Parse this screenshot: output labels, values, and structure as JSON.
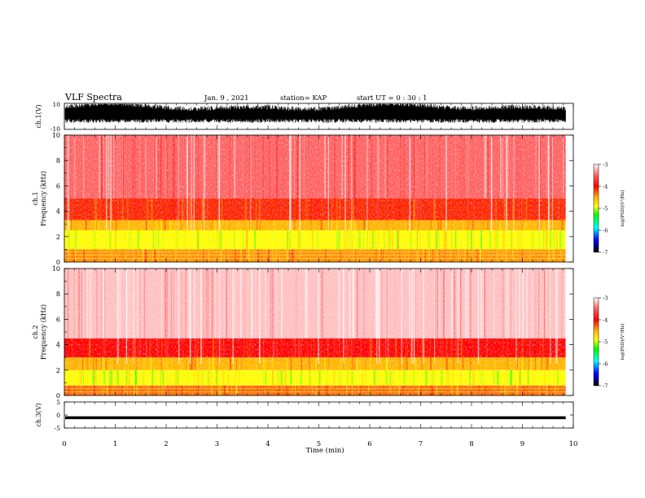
{
  "header": {
    "title": "VLF Spectra",
    "date": "Jan. 9 , 2021",
    "station": "station= KAP",
    "start_ut": "start UT = 0 : 30 : 1"
  },
  "colors": {
    "waveform": "#000000",
    "colormap": [
      "#ffffff",
      "#ff0000",
      "#ffff00",
      "#00ff00",
      "#00ffff",
      "#0000ff",
      "#000000"
    ]
  },
  "chart_data": [
    {
      "type": "line",
      "panel": "ch1-waveform",
      "ylabel": "ch.1(V)",
      "ylim": [
        -10,
        10
      ],
      "yticks": [
        "10",
        "-10"
      ],
      "xlim": [
        0,
        10
      ],
      "description_of_trace": "noisy broadband amplitude mostly within about -5 to 8 V"
    },
    {
      "type": "heatmap",
      "panel": "ch1-spectrogram",
      "ylabel_channel": "ch.1",
      "ylabel": "Frequency (kHz)",
      "ylim": [
        0,
        10
      ],
      "yticks": [
        "0",
        "2",
        "4",
        "6",
        "8",
        "10"
      ],
      "xlim": [
        0,
        10
      ],
      "data_end_min": 9.85,
      "colorbar": {
        "label": "log(PSD)(V²/Hz)",
        "range": [
          -7,
          -3
        ],
        "ticks": [
          "-3",
          "-4",
          "-5",
          "-6",
          "-7"
        ]
      },
      "bands_kHz": [
        {
          "f_from": 0,
          "f_to": 1,
          "level": -4.4
        },
        {
          "f_from": 1,
          "f_to": 2.5,
          "level": -4.9
        },
        {
          "f_from": 2.5,
          "f_to": 3.3,
          "level": -4.5
        },
        {
          "f_from": 3.3,
          "f_to": 5,
          "level": -4.1
        },
        {
          "f_from": 5,
          "f_to": 10,
          "level": -3.5
        }
      ]
    },
    {
      "type": "heatmap",
      "panel": "ch2-spectrogram",
      "ylabel_channel": "ch.2",
      "ylabel": "Frequency (kHz)",
      "ylim": [
        0,
        10
      ],
      "yticks": [
        "0",
        "2",
        "4",
        "6",
        "8",
        "10"
      ],
      "xlim": [
        0,
        10
      ],
      "data_end_min": 9.85,
      "colorbar": {
        "label": "log(PSD)(V²/Hz)",
        "range": [
          -7,
          -3
        ],
        "ticks": [
          "-3",
          "-4",
          "-5",
          "-6",
          "-7"
        ]
      },
      "bands_kHz": [
        {
          "f_from": 0,
          "f_to": 0.8,
          "level": -4.3
        },
        {
          "f_from": 0.8,
          "f_to": 2,
          "level": -4.9
        },
        {
          "f_from": 2,
          "f_to": 3,
          "level": -4.5
        },
        {
          "f_from": 3,
          "f_to": 4.5,
          "level": -4.0
        },
        {
          "f_from": 4.5,
          "f_to": 10,
          "level": -3.2
        }
      ]
    },
    {
      "type": "line",
      "panel": "ch3-waveform",
      "ylabel": "ch.3(V)",
      "ylim": [
        -5,
        5
      ],
      "yticks": [
        "5",
        "0",
        "-5"
      ],
      "xlim": [
        0,
        10
      ],
      "description_of_trace": "steady band around -1 V, roughly -1.5 to -0.5 V"
    }
  ],
  "xaxis": {
    "label": "Time (min)",
    "ticks": [
      "0",
      "1",
      "2",
      "3",
      "4",
      "5",
      "6",
      "7",
      "8",
      "9",
      "10"
    ]
  }
}
